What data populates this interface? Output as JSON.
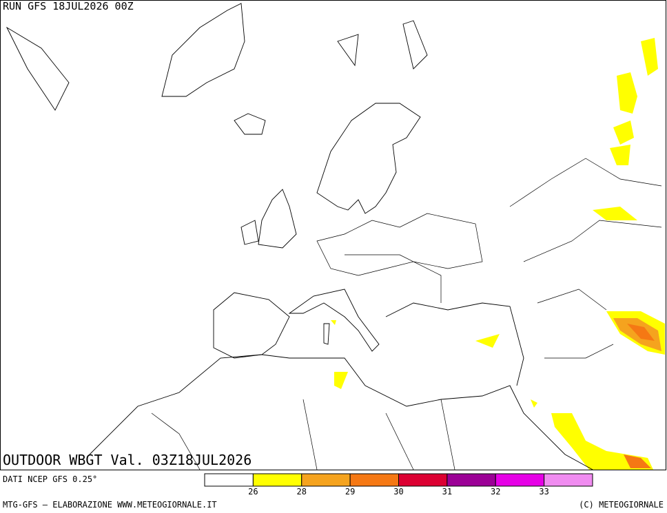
{
  "header": {
    "run": "RUN GFS 18JUL2026 00Z"
  },
  "map": {
    "title": "OUTDOOR WBGT Val. 03Z18JUL2026"
  },
  "source": "DATI NCEP GFS 0.25°",
  "legend": {
    "colors": [
      "#ffffff",
      "#ffff00",
      "#f5a31e",
      "#f57814",
      "#dc0032",
      "#9b0096",
      "#e600e6",
      "#f08cf0"
    ],
    "labels": [
      26,
      28,
      29,
      30,
      31,
      32,
      33
    ]
  },
  "footer": {
    "left": "MTG-GFS — ELABORAZIONE WWW.METEOGIORNALE.IT",
    "right": "(C) METEOGIORNALE"
  }
}
